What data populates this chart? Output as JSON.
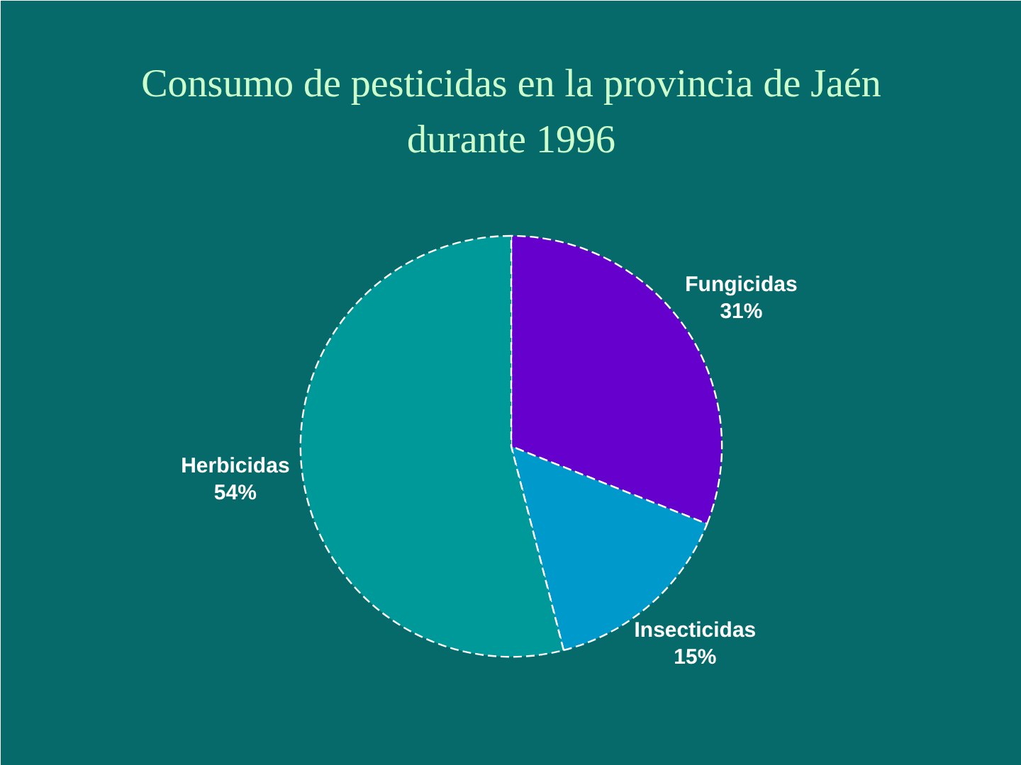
{
  "chart_data": {
    "type": "pie",
    "title": "Consumo de pesticidas en la provincia de Jaén durante 1996",
    "categories": [
      "Fungicidas",
      "Insecticidas",
      "Herbicidas"
    ],
    "values": [
      31,
      15,
      54
    ],
    "colors": [
      "#6600cc",
      "#0099cc",
      "#009999"
    ],
    "value_labels": [
      "31%",
      "15%",
      "54%"
    ]
  }
}
